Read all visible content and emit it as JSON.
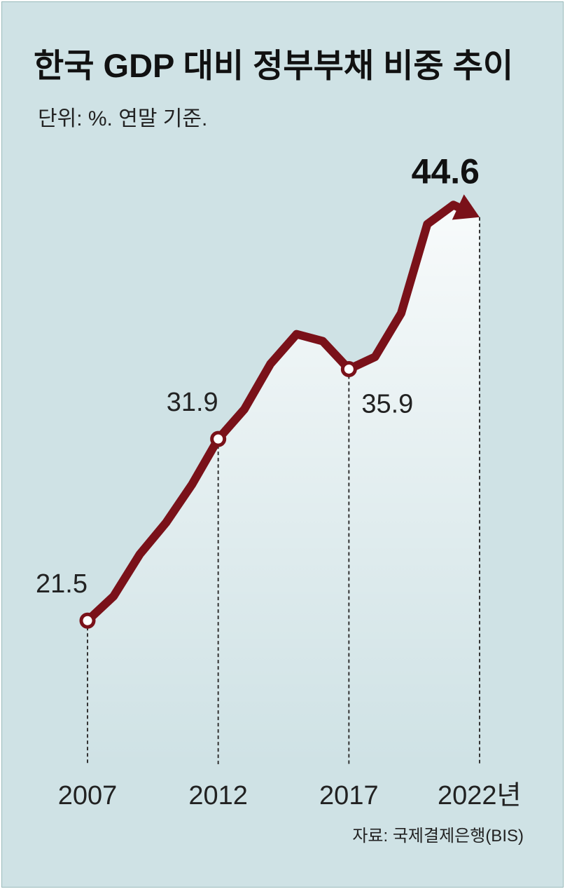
{
  "chart_data": {
    "type": "line",
    "title": "한국 GDP 대비 정부부채 비중 추이",
    "subtitle": "단위: %. 연말 기준.",
    "source": "자료: 국제결제은행(BIS)",
    "x": [
      2007,
      2008,
      2009,
      2010,
      2011,
      2012,
      2013,
      2014,
      2015,
      2016,
      2017,
      2018,
      2019,
      2020,
      2021,
      2022
    ],
    "values": [
      21.5,
      22.9,
      25.3,
      27.1,
      29.3,
      31.9,
      33.6,
      36.2,
      37.9,
      37.5,
      35.9,
      36.6,
      39.1,
      44.2,
      45.3,
      44.6
    ],
    "color": "#7a1119",
    "xlim": [
      2007,
      2022
    ],
    "xticks": [
      2007,
      2012,
      2017,
      {
        "value": 2022,
        "label": "2022년"
      }
    ],
    "ylim": [
      13,
      48
    ]
  }
}
